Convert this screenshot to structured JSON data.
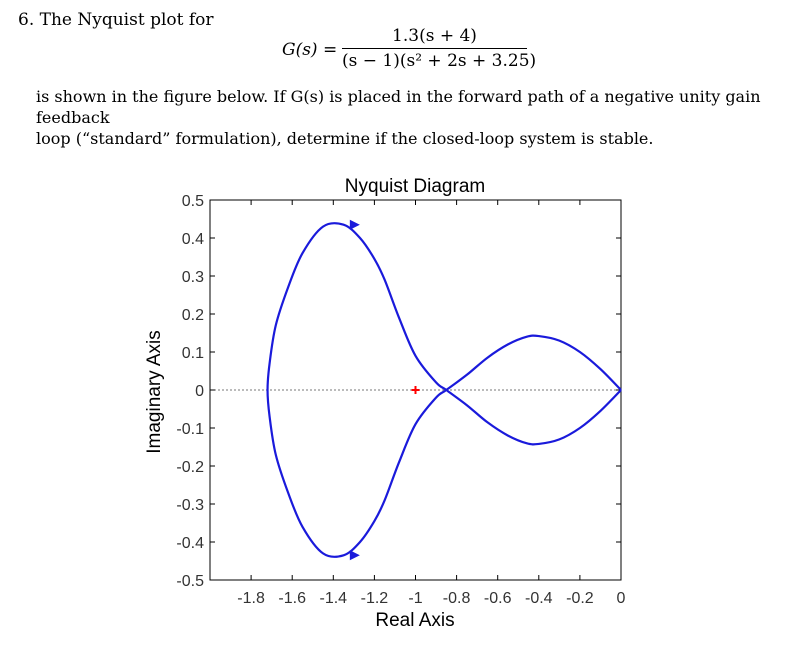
{
  "problem": {
    "number_label": "6. The Nyquist plot for",
    "transfer_function": {
      "lhs": "G(s) =",
      "numerator": "1.3(s + 4)",
      "denominator": "(s − 1)(s² + 2s + 3.25)"
    },
    "description_line1": "is shown in the figure below. If G(s) is placed in the forward path of a negative unity gain feedback",
    "description_line2": "loop (“standard” formulation), determine if the closed-loop system is stable."
  },
  "chart_data": {
    "type": "line",
    "title": "Nyquist Diagram",
    "xlabel": "Real Axis",
    "ylabel": "Imaginary Axis",
    "xlim": [
      -2.0,
      0
    ],
    "ylim": [
      -0.5,
      0.5
    ],
    "xticks": [
      "-1.8",
      "-1.6",
      "-1.4",
      "-1.2",
      "-1",
      "-0.8",
      "-0.6",
      "-0.4",
      "-0.2",
      "0"
    ],
    "xtick_values": [
      -1.8,
      -1.6,
      -1.4,
      -1.2,
      -1.0,
      -0.8,
      -0.6,
      -0.4,
      -0.2,
      0
    ],
    "yticks": [
      "0.5",
      "0.4",
      "0.3",
      "0.2",
      "0.1",
      "0",
      "-0.1",
      "-0.2",
      "-0.3",
      "-0.4",
      "-0.5"
    ],
    "ytick_values": [
      0.5,
      0.4,
      0.3,
      0.2,
      0.1,
      0,
      -0.1,
      -0.2,
      -0.3,
      -0.4,
      -0.5
    ],
    "grid": false,
    "zero_line": true,
    "curve_color": "#1a1adb",
    "critical_point": {
      "x": -1.0,
      "y": 0.0,
      "marker": "+",
      "color": "#ff0000"
    },
    "series": [
      {
        "values_x": [
          0.0,
          -0.1,
          -0.2,
          -0.3,
          -0.4,
          -0.46,
          -0.55,
          -0.65,
          -0.75,
          -0.85,
          -0.9,
          -1.0,
          -1.08,
          -1.15,
          -1.2,
          -1.27,
          -1.35,
          -1.45,
          -1.55,
          -1.62,
          -1.68,
          -1.71,
          -1.72,
          -1.71,
          -1.68,
          -1.62,
          -1.55,
          -1.45,
          -1.35,
          -1.27,
          -1.2,
          -1.15,
          -1.08,
          -1.0,
          -0.9,
          -0.85,
          -0.75,
          -0.65,
          -0.55,
          -0.46,
          -0.4,
          -0.3,
          -0.2,
          -0.1,
          0.0
        ],
        "values_y": [
          0.0,
          0.055,
          0.1,
          0.13,
          0.142,
          0.14,
          0.12,
          0.085,
          0.04,
          0.0,
          -0.02,
          -0.09,
          -0.19,
          -0.29,
          -0.345,
          -0.4,
          -0.435,
          -0.43,
          -0.36,
          -0.27,
          -0.17,
          -0.07,
          0.0,
          0.07,
          0.17,
          0.27,
          0.36,
          0.43,
          0.435,
          0.4,
          0.345,
          0.29,
          0.19,
          0.09,
          0.02,
          0.0,
          -0.04,
          -0.085,
          -0.12,
          -0.14,
          -0.142,
          -0.13,
          -0.1,
          -0.055,
          0.0
        ]
      }
    ]
  }
}
